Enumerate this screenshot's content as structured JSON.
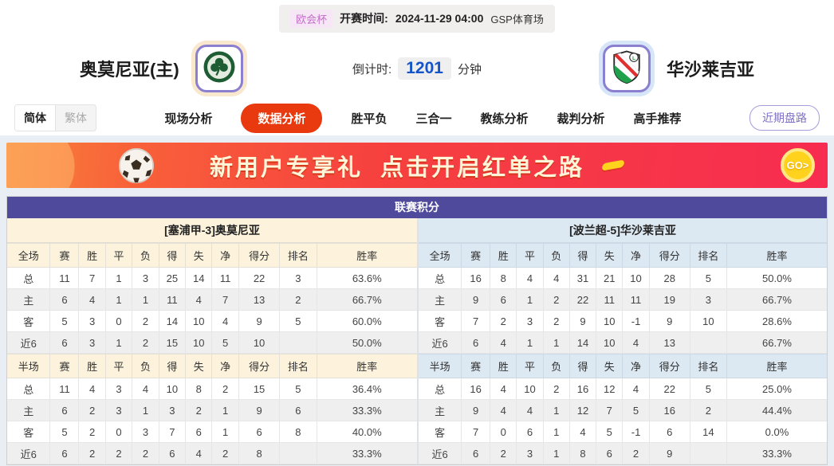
{
  "top_bar": {
    "league_badge": "欧会杯",
    "kickoff_label": "开赛时间:",
    "kickoff_time": "2024-11-29 04:00",
    "venue": "GSP体育场"
  },
  "header": {
    "home_name": "奥莫尼亚(主)",
    "away_name": "华沙莱吉亚",
    "home_logo_icon": "omonia-crest",
    "away_logo_icon": "legia-crest",
    "countdown_label": "倒计时:",
    "countdown_value": "1201",
    "countdown_unit": "分钟"
  },
  "nav": {
    "lang_simplified": "简体",
    "lang_traditional": "繁体",
    "items": [
      {
        "label": "现场分析",
        "active": false
      },
      {
        "label": "数据分析",
        "active": true
      },
      {
        "label": "胜平负",
        "active": false
      },
      {
        "label": "三合一",
        "active": false
      },
      {
        "label": "教练分析",
        "active": false
      },
      {
        "label": "裁判分析",
        "active": false
      },
      {
        "label": "高手推荐",
        "active": false
      }
    ],
    "recent_trend_button": "近期盘路"
  },
  "banner": {
    "headline_left": "新用户专享礼",
    "headline_right": "点击开启红单之路",
    "go_label": "GO>",
    "ball_icon": "soccer-ball"
  },
  "league_table": {
    "title": "联赛积分",
    "home": {
      "header": "[塞浦甲-3]奥莫尼亚",
      "full": {
        "columns": [
          "全场",
          "赛",
          "胜",
          "平",
          "负",
          "得",
          "失",
          "净",
          "得分",
          "排名",
          "胜率"
        ],
        "rows": [
          [
            "总",
            "11",
            "7",
            "1",
            "3",
            "25",
            "14",
            "11",
            "22",
            "3",
            "63.6%"
          ],
          [
            "主",
            "6",
            "4",
            "1",
            "1",
            "11",
            "4",
            "7",
            "13",
            "2",
            "66.7%"
          ],
          [
            "客",
            "5",
            "3",
            "0",
            "2",
            "14",
            "10",
            "4",
            "9",
            "5",
            "60.0%"
          ],
          [
            "近6",
            "6",
            "3",
            "1",
            "2",
            "15",
            "10",
            "5",
            "10",
            "",
            "50.0%"
          ]
        ]
      },
      "half": {
        "columns": [
          "半场",
          "赛",
          "胜",
          "平",
          "负",
          "得",
          "失",
          "净",
          "得分",
          "排名",
          "胜率"
        ],
        "rows": [
          [
            "总",
            "11",
            "4",
            "3",
            "4",
            "10",
            "8",
            "2",
            "15",
            "5",
            "36.4%"
          ],
          [
            "主",
            "6",
            "2",
            "3",
            "1",
            "3",
            "2",
            "1",
            "9",
            "6",
            "33.3%"
          ],
          [
            "客",
            "5",
            "2",
            "0",
            "3",
            "7",
            "6",
            "1",
            "6",
            "8",
            "40.0%"
          ],
          [
            "近6",
            "6",
            "2",
            "2",
            "2",
            "6",
            "4",
            "2",
            "8",
            "",
            "33.3%"
          ]
        ]
      }
    },
    "away": {
      "header": "[波兰超-5]华沙莱吉亚",
      "full": {
        "columns": [
          "全场",
          "赛",
          "胜",
          "平",
          "负",
          "得",
          "失",
          "净",
          "得分",
          "排名",
          "胜率"
        ],
        "rows": [
          [
            "总",
            "16",
            "8",
            "4",
            "4",
            "31",
            "21",
            "10",
            "28",
            "5",
            "50.0%"
          ],
          [
            "主",
            "9",
            "6",
            "1",
            "2",
            "22",
            "11",
            "11",
            "19",
            "3",
            "66.7%"
          ],
          [
            "客",
            "7",
            "2",
            "3",
            "2",
            "9",
            "10",
            "-1",
            "9",
            "10",
            "28.6%"
          ],
          [
            "近6",
            "6",
            "4",
            "1",
            "1",
            "14",
            "10",
            "4",
            "13",
            "",
            "66.7%"
          ]
        ]
      },
      "half": {
        "columns": [
          "半场",
          "赛",
          "胜",
          "平",
          "负",
          "得",
          "失",
          "净",
          "得分",
          "排名",
          "胜率"
        ],
        "rows": [
          [
            "总",
            "16",
            "4",
            "10",
            "2",
            "16",
            "12",
            "4",
            "22",
            "5",
            "25.0%"
          ],
          [
            "主",
            "9",
            "4",
            "4",
            "1",
            "12",
            "7",
            "5",
            "16",
            "2",
            "44.4%"
          ],
          [
            "客",
            "7",
            "0",
            "6",
            "1",
            "4",
            "5",
            "-1",
            "6",
            "14",
            "0.0%"
          ],
          [
            "近6",
            "6",
            "2",
            "3",
            "1",
            "8",
            "6",
            "2",
            "9",
            "",
            "33.3%"
          ]
        ]
      }
    }
  },
  "colors": {
    "title_bar_purple": "#4f4a9c",
    "nav_active_orange": "#e8390f",
    "home_header_cream": "#fdf3dd",
    "away_header_blue": "#dce8f2",
    "home_row_label_red": "#d42a2a",
    "away_row_label_blue": "#2145cd",
    "countdown_blue": "#1553c8",
    "banner_red_start": "#f9823a",
    "banner_red_end": "#f72c50",
    "go_button_yellow": "#ffd21e"
  }
}
